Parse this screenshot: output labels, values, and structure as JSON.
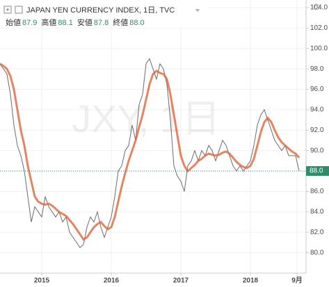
{
  "header": {
    "title": "JAPAN YEN CURRENCY INDEX, 1日, TVC",
    "ohlc": [
      {
        "label": "始値",
        "value": "87.9"
      },
      {
        "label": "高値",
        "value": "88.1"
      },
      {
        "label": "安値",
        "value": "87.8"
      },
      {
        "label": "終値",
        "value": "88.0"
      }
    ],
    "watermark": "JXY, 1日"
  },
  "chart_data": {
    "type": "line",
    "grid": true,
    "x": [
      2014.4,
      2014.45,
      2014.5,
      2014.55,
      2014.6,
      2014.65,
      2014.7,
      2014.75,
      2014.8,
      2014.85,
      2014.9,
      2014.95,
      2015.0,
      2015.05,
      2015.1,
      2015.15,
      2015.2,
      2015.25,
      2015.3,
      2015.35,
      2015.4,
      2015.45,
      2015.5,
      2015.55,
      2015.6,
      2015.65,
      2015.7,
      2015.75,
      2015.8,
      2015.85,
      2015.9,
      2015.95,
      2016.0,
      2016.05,
      2016.1,
      2016.15,
      2016.2,
      2016.25,
      2016.3,
      2016.35,
      2016.4,
      2016.45,
      2016.5,
      2016.55,
      2016.6,
      2016.65,
      2016.7,
      2016.75,
      2016.8,
      2016.85,
      2016.9,
      2016.95,
      2017.0,
      2017.05,
      2017.1,
      2017.15,
      2017.2,
      2017.25,
      2017.3,
      2017.35,
      2017.4,
      2017.45,
      2017.5,
      2017.55,
      2017.6,
      2017.65,
      2017.7,
      2017.75,
      2017.8,
      2017.85,
      2017.9,
      2017.95,
      2018.0,
      2018.05,
      2018.1,
      2018.15,
      2018.2,
      2018.25,
      2018.3,
      2018.35,
      2018.4,
      2018.45,
      2018.5,
      2018.55,
      2018.6,
      2018.65,
      2018.7
    ],
    "series": [
      {
        "color": "#6b6b6b",
        "values": [
          98.5,
          98.0,
          97.5,
          95.5,
          92.5,
          90.5,
          89.5,
          88.0,
          85.5,
          83.0,
          84.5,
          84.0,
          83.5,
          85.5,
          84.5,
          84.0,
          83.5,
          84.0,
          83.0,
          83.5,
          82.0,
          81.5,
          81.0,
          80.5,
          80.8,
          82.5,
          83.5,
          83.0,
          84.0,
          82.5,
          81.5,
          82.5,
          83.5,
          85.5,
          88.0,
          88.5,
          90.0,
          90.5,
          92.5,
          91.0,
          94.5,
          95.5,
          98.5,
          99.0,
          98.0,
          97.0,
          98.5,
          98.0,
          96.5,
          93.0,
          88.5,
          87.5,
          87.0,
          86.0,
          88.5,
          89.0,
          90.0,
          89.0,
          90.0,
          89.5,
          90.5,
          90.0,
          89.0,
          90.0,
          91.0,
          90.5,
          89.5,
          88.5,
          88.0,
          88.5,
          88.0,
          88.5,
          89.0,
          90.5,
          92.5,
          93.5,
          94.0,
          93.0,
          92.0,
          91.0,
          90.5,
          90.0,
          90.5,
          89.5,
          89.5,
          89.5,
          88.0
        ]
      },
      {
        "color": "#e0643a",
        "values": [
          98.5,
          98.3,
          98.0,
          97.3,
          96.0,
          94.0,
          92.0,
          90.5,
          88.5,
          87.0,
          85.5,
          85.0,
          84.8,
          84.7,
          84.8,
          84.6,
          84.3,
          84.0,
          83.8,
          83.6,
          83.2,
          82.8,
          82.3,
          81.8,
          81.3,
          81.5,
          82.0,
          82.5,
          82.8,
          83.0,
          82.6,
          82.3,
          82.5,
          83.5,
          85.0,
          86.5,
          87.8,
          89.0,
          90.0,
          91.0,
          92.3,
          93.5,
          95.0,
          96.5,
          97.5,
          97.8,
          97.6,
          97.5,
          97.0,
          95.5,
          93.5,
          91.5,
          89.5,
          88.5,
          88.0,
          88.3,
          88.6,
          89.0,
          89.2,
          89.5,
          89.7,
          89.6,
          89.5,
          89.6,
          89.8,
          89.9,
          89.7,
          89.3,
          88.9,
          88.6,
          88.4,
          88.3,
          88.5,
          89.2,
          90.5,
          91.8,
          92.8,
          93.2,
          92.8,
          92.0,
          91.3,
          90.8,
          90.5,
          90.2,
          89.9,
          89.7,
          89.3
        ]
      }
    ],
    "xlim": [
      2014.4,
      2018.8
    ],
    "xticks": [
      2015,
      2016,
      2017,
      2018,
      {
        "value": 2018.67,
        "label": "9月"
      }
    ],
    "ylim": [
      78.0,
      104.75
    ],
    "yticks": [
      {
        "value": 80,
        "label": "80.0"
      },
      {
        "value": 82,
        "label": "82.0"
      },
      {
        "value": 84,
        "label": "84.0"
      },
      {
        "value": 86,
        "label": "86.0"
      },
      {
        "value": 88,
        "label": "88.0"
      },
      {
        "value": 90,
        "label": "90.0"
      },
      {
        "value": 92,
        "label": "92.0"
      },
      {
        "value": 94,
        "label": "94.0"
      },
      {
        "value": 96,
        "label": "96.0"
      },
      {
        "value": 98,
        "label": "98.0"
      },
      {
        "value": 100,
        "label": "100.0"
      },
      {
        "value": 102,
        "label": "102.0"
      },
      {
        "value": 104,
        "label": "104.0"
      }
    ],
    "last_price": {
      "value": 88.0,
      "label": "88.0",
      "color": "#2f8c6a"
    }
  }
}
